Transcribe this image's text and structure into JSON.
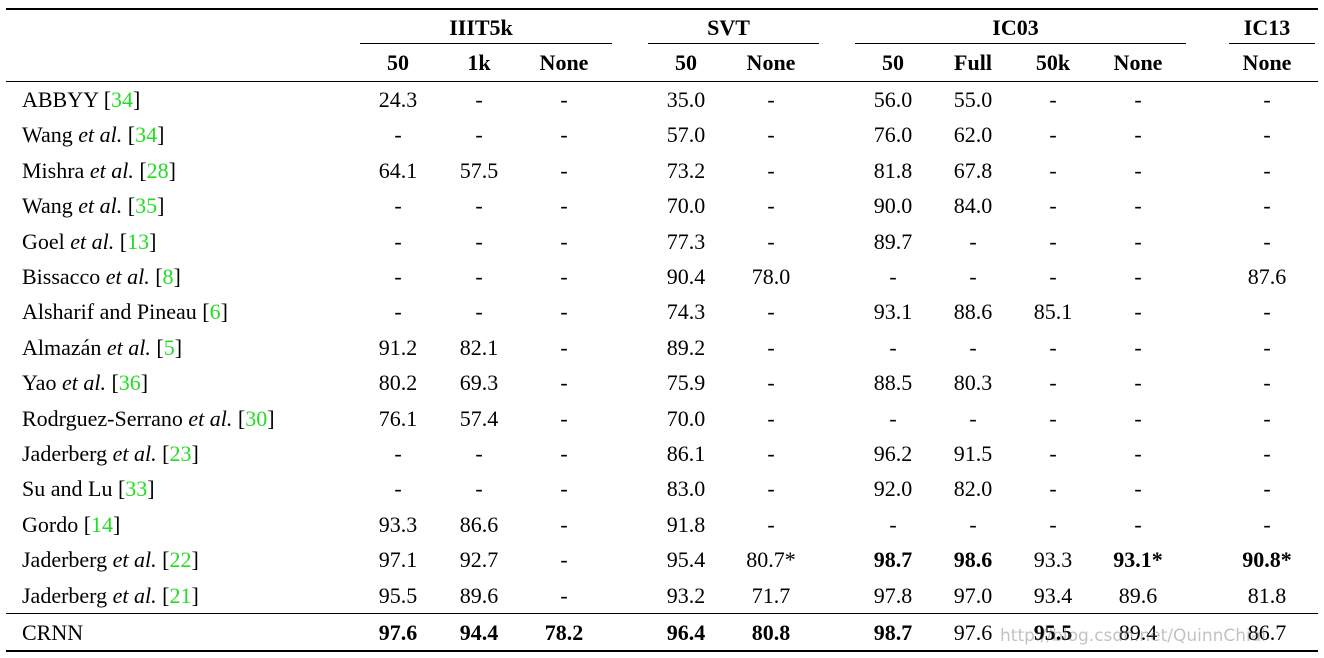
{
  "table": {
    "groups": [
      {
        "name": "IIIT5k",
        "cols": [
          "50",
          "1k",
          "None"
        ]
      },
      {
        "name": "SVT",
        "cols": [
          "50",
          "None"
        ]
      },
      {
        "name": "IC03",
        "cols": [
          "50",
          "Full",
          "50k",
          "None"
        ]
      },
      {
        "name": "IC13",
        "cols": [
          "None"
        ]
      }
    ],
    "rows": [
      {
        "name": "ABBYY",
        "ref": [
          "[",
          "34",
          "]"
        ],
        "cells": [
          "24.3",
          "-",
          "-",
          "35.0",
          "-",
          "56.0",
          "55.0",
          "-",
          "-",
          "-"
        ]
      },
      {
        "name": "Wang",
        "etal": "et al.",
        "ref": [
          "[",
          "34",
          "]"
        ],
        "cells": [
          "-",
          "-",
          "-",
          "57.0",
          "-",
          "76.0",
          "62.0",
          "-",
          "-",
          "-"
        ]
      },
      {
        "name": "Mishra",
        "etal": "et al.",
        "ref": [
          "[",
          "28",
          "]"
        ],
        "cells": [
          "64.1",
          "57.5",
          "-",
          "73.2",
          "-",
          "81.8",
          "67.8",
          "-",
          "-",
          "-"
        ]
      },
      {
        "name": "Wang",
        "etal": "et al.",
        "ref": [
          "[",
          "35",
          "]"
        ],
        "cells": [
          "-",
          "-",
          "-",
          "70.0",
          "-",
          "90.0",
          "84.0",
          "-",
          "-",
          "-"
        ]
      },
      {
        "name": "Goel",
        "etal": "et al.",
        "ref": [
          "[",
          "13",
          "]"
        ],
        "cells": [
          "-",
          "-",
          "-",
          "77.3",
          "-",
          "89.7",
          "-",
          "-",
          "-",
          "-"
        ]
      },
      {
        "name": "Bissacco",
        "etal": "et al.",
        "ref": [
          "[",
          "8",
          "]"
        ],
        "cells": [
          "-",
          "-",
          "-",
          "90.4",
          "78.0",
          "-",
          "-",
          "-",
          "-",
          "87.6"
        ]
      },
      {
        "name": "Alsharif and Pineau",
        "ref": [
          "[",
          "6",
          "]"
        ],
        "cells": [
          "-",
          "-",
          "-",
          "74.3",
          "-",
          "93.1",
          "88.6",
          "85.1",
          "-",
          "-"
        ]
      },
      {
        "name": "Almazán",
        "etal": "et al.",
        "ref": [
          "[",
          "5",
          "]"
        ],
        "cells": [
          "91.2",
          "82.1",
          "-",
          "89.2",
          "-",
          "-",
          "-",
          "-",
          "-",
          "-"
        ]
      },
      {
        "name": "Yao",
        "etal": "et al.",
        "ref": [
          "[",
          "36",
          "]"
        ],
        "cells": [
          "80.2",
          "69.3",
          "-",
          "75.9",
          "-",
          "88.5",
          "80.3",
          "-",
          "-",
          "-"
        ]
      },
      {
        "name": "Rodrguez-Serrano",
        "etal": "et al.",
        "ref": [
          "[",
          "30",
          "]"
        ],
        "cells": [
          "76.1",
          "57.4",
          "-",
          "70.0",
          "-",
          "-",
          "-",
          "-",
          "-",
          "-"
        ]
      },
      {
        "name": "Jaderberg",
        "etal": "et al.",
        "ref": [
          "[",
          "23",
          "]"
        ],
        "cells": [
          "-",
          "-",
          "-",
          "86.1",
          "-",
          "96.2",
          "91.5",
          "-",
          "-",
          "-"
        ]
      },
      {
        "name": "Su and Lu",
        "ref": [
          "[",
          "33",
          "]"
        ],
        "cells": [
          "-",
          "-",
          "-",
          "83.0",
          "-",
          "92.0",
          "82.0",
          "-",
          "-",
          "-"
        ]
      },
      {
        "name": "Gordo",
        "ref": [
          "[",
          "14",
          "]"
        ],
        "cells": [
          "93.3",
          "86.6",
          "-",
          "91.8",
          "-",
          "-",
          "-",
          "-",
          "-",
          "-"
        ]
      },
      {
        "name": "Jaderberg",
        "etal": "et al.",
        "ref": [
          "[",
          "22",
          "]"
        ],
        "cells": [
          "97.1",
          "92.7",
          "-",
          "95.4",
          "80.7*",
          "98.7",
          "98.6",
          "93.3",
          "93.1*",
          "90.8*"
        ],
        "bold": [
          5,
          6,
          8,
          9
        ]
      },
      {
        "name": "Jaderberg",
        "etal": "et al.",
        "ref": [
          "[",
          "21",
          "]"
        ],
        "cells": [
          "95.5",
          "89.6",
          "-",
          "93.2",
          "71.7",
          "97.8",
          "97.0",
          "93.4",
          "89.6",
          "81.8"
        ]
      },
      {
        "name": "CRNN",
        "cells": [
          "97.6",
          "94.4",
          "78.2",
          "96.4",
          "80.8",
          "98.7",
          "97.6",
          "95.5",
          "89.4",
          "86.7"
        ],
        "bold": [
          0,
          1,
          2,
          3,
          4,
          5,
          7
        ]
      }
    ],
    "watermark": "http://blog.csdn.net/QuinnChial"
  }
}
